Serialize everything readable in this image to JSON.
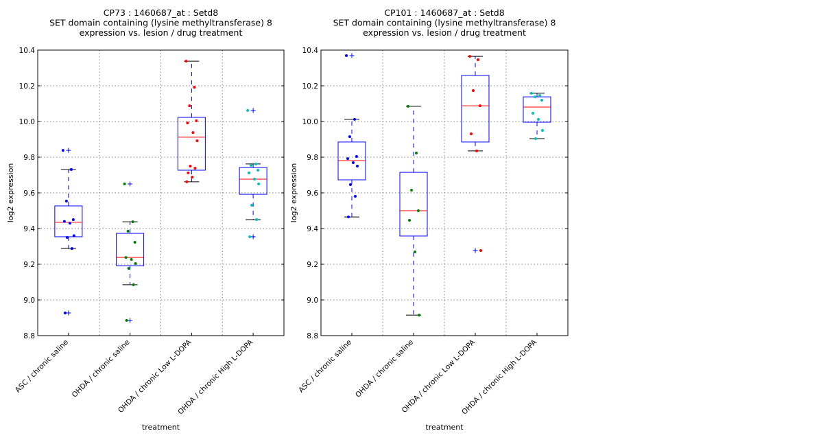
{
  "chart_data": [
    {
      "type": "box",
      "title_lines": [
        "CP73 : 1460687_at : Setd8",
        "SET domain containing (lysine methyltransferase) 8",
        "expression vs. lesion / drug treatment"
      ],
      "xlabel": "treatment",
      "ylabel": "log2 expression",
      "ylim": [
        8.8,
        10.4
      ],
      "yticks": [
        "8.8",
        "9.0",
        "9.2",
        "9.4",
        "9.6",
        "9.8",
        "10.0",
        "10.2",
        "10.4"
      ],
      "grid": true,
      "categories": [
        "ASC / chronic saline",
        "OHDA / chronic saline",
        "OHDA / chronic Low L-DOPA",
        "OHDA / chronic High L-DOPA"
      ],
      "point_colors": [
        "#0000ff",
        "#008000",
        "#ff0000",
        "#00bfbf"
      ],
      "boxes": [
        {
          "whisker_low": 9.288,
          "q1": 9.354,
          "median": 9.435,
          "q3": 9.527,
          "whisker_high": 9.731,
          "outliers": [
            9.838,
            8.927
          ]
        },
        {
          "whisker_low": 9.085,
          "q1": 9.192,
          "median": 9.238,
          "q3": 9.373,
          "whisker_high": 9.438,
          "outliers": [
            9.65,
            8.885
          ]
        },
        {
          "whisker_low": 9.662,
          "q1": 9.727,
          "median": 9.912,
          "q3": 10.023,
          "whisker_high": 10.338,
          "outliers": []
        },
        {
          "whisker_low": 9.45,
          "q1": 9.592,
          "median": 9.677,
          "q3": 9.742,
          "whisker_high": 9.762,
          "outliers": [
            10.062,
            9.354
          ]
        }
      ],
      "points": [
        [
          9.838,
          9.731,
          9.554,
          9.45,
          9.44,
          9.43,
          9.36,
          9.35,
          9.288,
          8.927
        ],
        [
          9.65,
          9.438,
          9.385,
          9.323,
          9.238,
          9.227,
          9.204,
          9.177,
          9.085,
          8.885
        ],
        [
          10.338,
          10.192,
          10.088,
          10.004,
          9.992,
          9.938,
          9.892,
          9.75,
          9.738,
          9.712,
          9.688,
          9.662
        ],
        [
          10.062,
          9.762,
          9.754,
          9.727,
          9.712,
          9.677,
          9.65,
          9.531,
          9.45,
          9.354
        ]
      ]
    },
    {
      "type": "box",
      "title_lines": [
        "CP101 : 1460687_at : Setd8",
        "SET domain containing (lysine methyltransferase) 8",
        "expression vs. lesion / drug treatment"
      ],
      "xlabel": "treatment",
      "ylabel": "log2 expression",
      "ylim": [
        8.8,
        10.4
      ],
      "yticks": [
        "8.8",
        "9.0",
        "9.2",
        "9.4",
        "9.6",
        "9.8",
        "10.0",
        "10.2",
        "10.4"
      ],
      "grid": true,
      "categories": [
        "ASC / chronic saline",
        "OHDA / chronic saline",
        "OHDA / chronic Low L-DOPA",
        "OHDA / chronic High L-DOPA"
      ],
      "point_colors": [
        "#0000ff",
        "#008000",
        "#ff0000",
        "#00bfbf"
      ],
      "boxes": [
        {
          "whisker_low": 9.465,
          "q1": 9.673,
          "median": 9.781,
          "q3": 9.885,
          "whisker_high": 10.012,
          "outliers": [
            10.369
          ]
        },
        {
          "whisker_low": 8.915,
          "q1": 9.358,
          "median": 9.5,
          "q3": 9.715,
          "whisker_high": 10.085,
          "outliers": []
        },
        {
          "whisker_low": 9.835,
          "q1": 9.885,
          "median": 10.088,
          "q3": 10.258,
          "whisker_high": 10.365,
          "outliers": [
            9.277
          ]
        },
        {
          "whisker_low": 9.904,
          "q1": 9.996,
          "median": 10.081,
          "q3": 10.138,
          "whisker_high": 10.158,
          "outliers": []
        }
      ],
      "points": [
        [
          10.369,
          10.012,
          9.915,
          9.804,
          9.792,
          9.769,
          9.75,
          9.646,
          9.581,
          9.465
        ],
        [
          10.085,
          9.823,
          9.615,
          9.5,
          9.446,
          9.269,
          8.915
        ],
        [
          10.365,
          10.346,
          10.173,
          10.088,
          9.931,
          9.835,
          9.277
        ],
        [
          10.158,
          10.146,
          10.138,
          10.119,
          10.046,
          10.012,
          9.95,
          9.904
        ]
      ]
    }
  ],
  "colors": {
    "box": "#0000ff",
    "median": "#ff0000",
    "cap": "#000000",
    "grid": "#808080"
  }
}
